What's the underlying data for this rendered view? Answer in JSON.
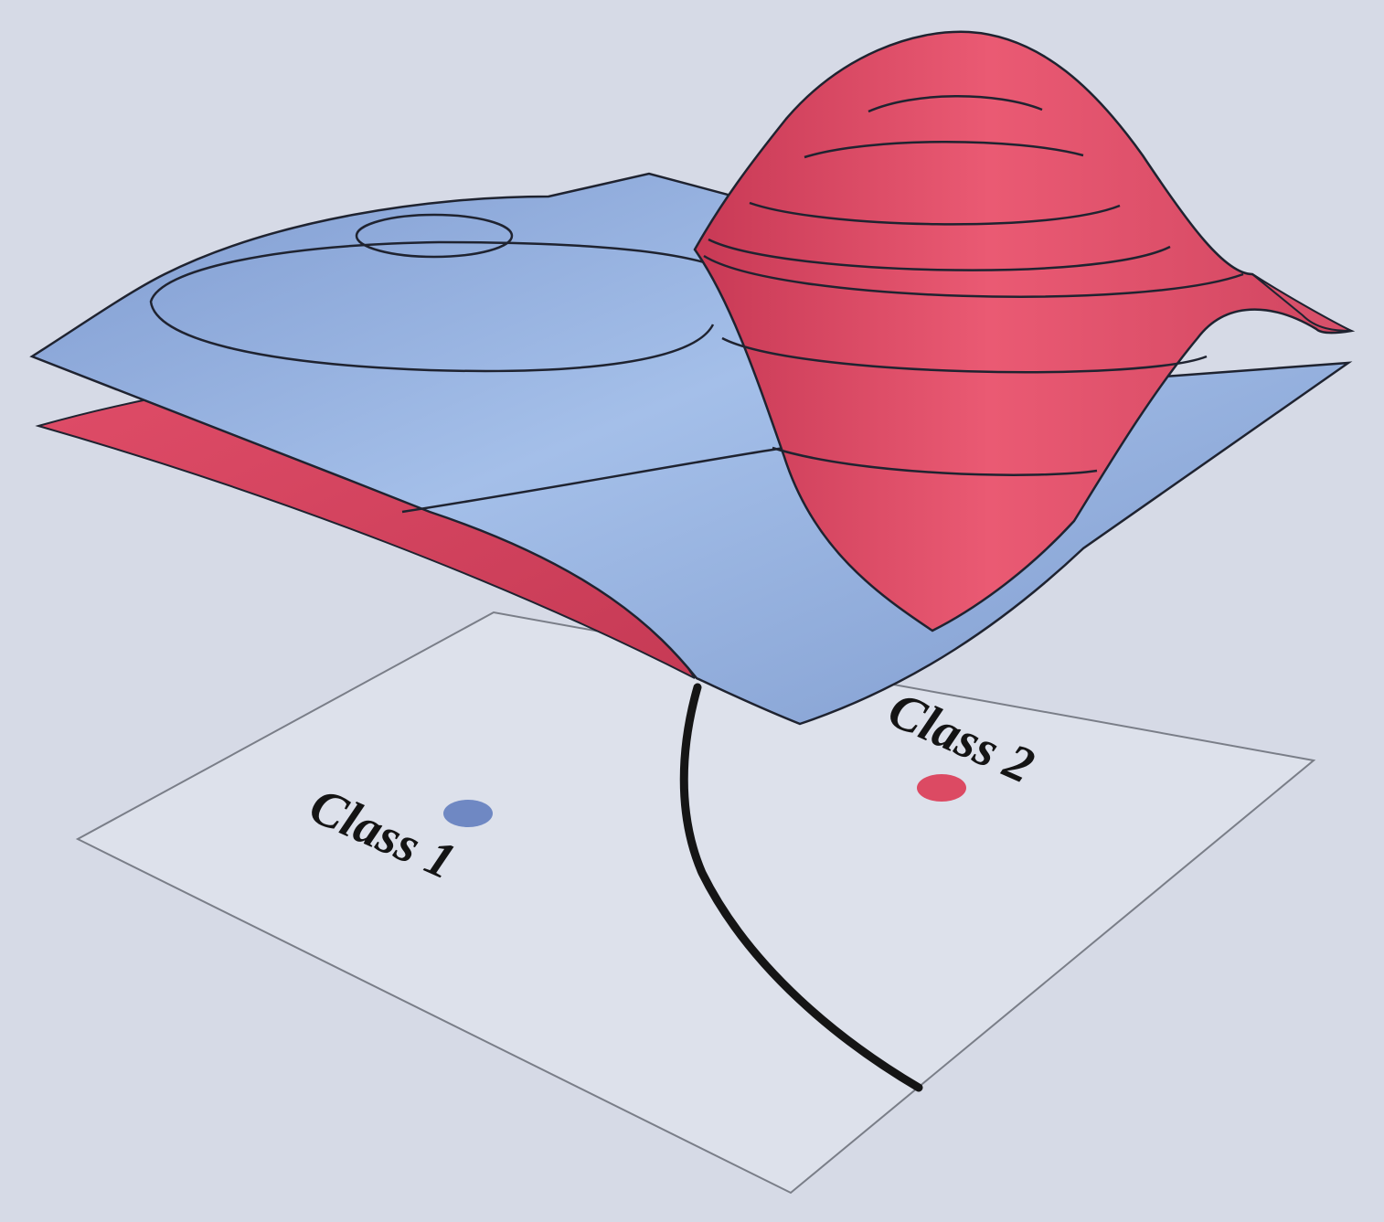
{
  "classes": [
    {
      "label": "Class 1",
      "color": "#6f88c3"
    },
    {
      "label": "Class 2",
      "color": "#dc4a63"
    }
  ],
  "colors": {
    "background": "#d6dae6",
    "base_plane_fill": "#dde1eb",
    "base_plane_edge": "#7a7e88",
    "blue_surface": "#90acdc",
    "blue_surface_dark": "#7c98cc",
    "red_surface": "#e3546e",
    "red_surface_dark": "#c93a56",
    "contour_line": "#1f2330",
    "decision_boundary": "#151515"
  }
}
